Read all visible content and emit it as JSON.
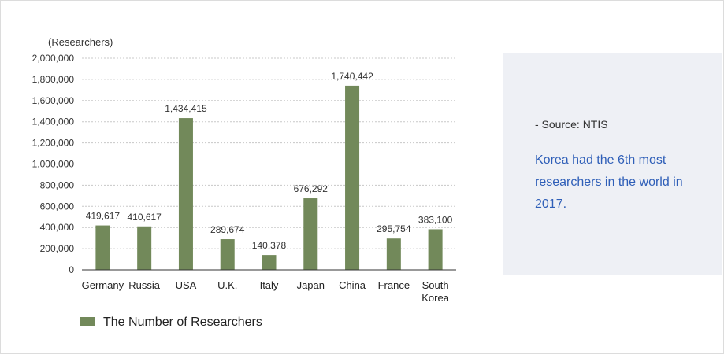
{
  "chart_data": {
    "type": "bar",
    "unit_label": "(Researchers)",
    "categories": [
      "Germany",
      "Russia",
      "USA",
      "U.K.",
      "Italy",
      "Japan",
      "China",
      "France",
      "South Korea"
    ],
    "category_lines": [
      [
        "Germany"
      ],
      [
        "Russia"
      ],
      [
        "USA"
      ],
      [
        "U.K."
      ],
      [
        "Italy"
      ],
      [
        "Japan"
      ],
      [
        "China"
      ],
      [
        "France"
      ],
      [
        "South",
        "Korea"
      ]
    ],
    "series": [
      {
        "name": "The Number of Researchers",
        "values": [
          419617,
          410617,
          1434415,
          289674,
          140378,
          676292,
          1740442,
          295754,
          383100
        ],
        "data_labels": [
          "419,617",
          "410,617",
          "1,434,415",
          "289,674",
          "140,378",
          "676,292",
          "1,740,442",
          "295,754",
          "383,100"
        ]
      }
    ],
    "ylim": [
      0,
      2000000
    ],
    "yticks": [
      0,
      200000,
      400000,
      600000,
      800000,
      1000000,
      1200000,
      1400000,
      1600000,
      1800000,
      2000000
    ],
    "ytick_labels": [
      "0",
      "200,000",
      "400,000",
      "600,000",
      "800,000",
      "1,000,000",
      "1,200,000",
      "1,400,000",
      "1,600,000",
      "1,800,000",
      "2,000,000"
    ],
    "grid": true,
    "legend_position": "bottom-left",
    "bar_color": "#72895a",
    "grid_color": "#c8c8c8",
    "axis_color": "#333333"
  },
  "side_note": {
    "source": "- Source: NTIS",
    "text": "Korea had the 6th most researchers in the world in 2017.",
    "text_color": "#2f5fb8"
  }
}
